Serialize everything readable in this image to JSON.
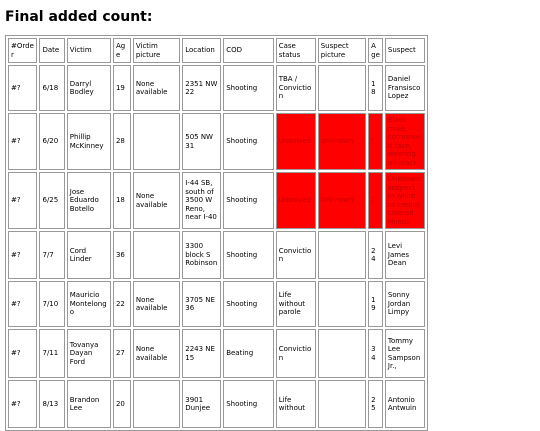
{
  "header": {
    "title": "Final added count:"
  },
  "table": {
    "columns": [
      "#Order",
      "Date",
      "Victim",
      "Age",
      "Victim picture",
      "Location",
      "COD",
      "Case status",
      "Suspect picture",
      "Age",
      "Suspect"
    ],
    "rows": [
      {
        "cells": [
          "#?",
          "6/18",
          "Darryl Bodley",
          "19",
          "None available",
          "2351 NW 22",
          "Shooting",
          "TBA / Conviction",
          null,
          "18",
          "Daniel Fransisco Lopez"
        ]
      },
      {
        "cells": [
          "#?",
          "6/20",
          "Phillip McKinney",
          "28",
          null,
          "505 NW 31",
          "Shooting",
          "Unsolved",
          "Unknown",
          "?",
          "Black male, cornrowed face, wearing all-black"
        ],
        "marked_color": "#ff0000"
      },
      {
        "cells": [
          "#?",
          "6/25",
          "Jose Eduardo Botello",
          "18",
          "None available",
          "I-44 SB, south of 3500 W Reno, near I-40",
          "Shooting",
          "Unsolved",
          "Unknown",
          "?",
          "Unknown suspect, in white or cream colored Honda"
        ],
        "marked_color": "#ff0000"
      },
      {
        "cells": [
          "#?",
          "7/7",
          "Cord Linder",
          "36",
          null,
          "3300 block S Robinson",
          "Shooting",
          "Conviction",
          null,
          "24",
          "Levi James Dean"
        ]
      },
      {
        "cells": [
          "#?",
          "7/10",
          "Mauricio Montelongo",
          "22",
          "None available",
          "3705 NE 36",
          "Shooting",
          "Life without parole",
          null,
          "19",
          "Sonny Jordan Limpy"
        ]
      },
      {
        "cells": [
          "#?",
          "7/11",
          "Tovanya Dayan Ford",
          "27",
          "None available",
          "2243 NE 15",
          "Beating",
          "Conviction",
          null,
          "34",
          "Tommy Lee Sampson Jr.,"
        ]
      },
      {
        "cells": [
          "#?",
          "8/13",
          "Brandon Lee",
          "20",
          null,
          "3901 Dunjee",
          "Shooting",
          "Life without",
          null,
          "25",
          "Antonio Antwuin"
        ]
      }
    ]
  }
}
